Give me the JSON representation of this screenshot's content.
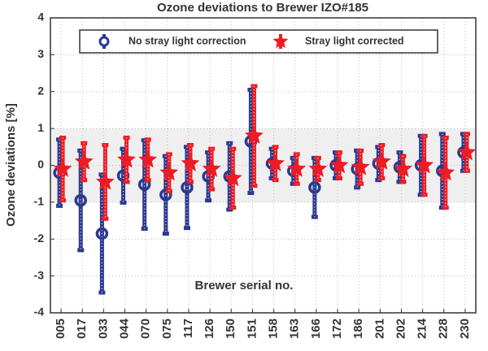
{
  "chart_data": {
    "type": "errorbar",
    "title": "Ozone deviations to Brewer IZO#185",
    "y_label": "Ozone deviations [%]",
    "x_label": "Brewer serial no.",
    "categories": [
      "005",
      "017",
      "033",
      "044",
      "070",
      "075",
      "117",
      "126",
      "150",
      "151",
      "158",
      "163",
      "166",
      "172",
      "186",
      "201",
      "202",
      "214",
      "228",
      "230"
    ],
    "series": [
      {
        "name": "No stray light correction",
        "color": "#2b3990",
        "marker": "circle",
        "values": [
          -0.2,
          -0.95,
          -1.85,
          -0.28,
          -0.52,
          -0.8,
          -0.6,
          -0.3,
          -0.3,
          0.65,
          0.05,
          -0.15,
          -0.6,
          0.0,
          -0.1,
          0.05,
          -0.05,
          0.0,
          -0.15,
          0.35
        ],
        "errors": [
          0.9,
          1.35,
          1.6,
          0.73,
          1.2,
          1.05,
          1.1,
          0.65,
          0.9,
          1.4,
          0.4,
          0.35,
          0.8,
          0.35,
          0.5,
          0.45,
          0.4,
          0.8,
          1.0,
          0.5
        ]
      },
      {
        "name": "Stray light corrected",
        "color": "#ed1c24",
        "marker": "star",
        "values": [
          -0.1,
          0.1,
          -0.45,
          0.15,
          0.15,
          -0.2,
          0.05,
          -0.1,
          -0.35,
          0.8,
          0.05,
          -0.1,
          -0.1,
          0.0,
          -0.05,
          0.1,
          -0.1,
          0.0,
          -0.2,
          0.35
        ],
        "errors": [
          0.85,
          0.5,
          1.0,
          0.6,
          0.55,
          0.5,
          0.5,
          0.55,
          0.8,
          1.35,
          0.45,
          0.4,
          0.3,
          0.35,
          0.45,
          0.45,
          0.35,
          0.8,
          0.95,
          0.5
        ]
      }
    ],
    "shaded_range": [
      -1,
      1
    ],
    "ylim": [
      -4,
      4
    ],
    "yticks": [
      -4,
      -3,
      -2,
      -1,
      0,
      1,
      2,
      3,
      4
    ],
    "grid": true,
    "legend": "top"
  }
}
